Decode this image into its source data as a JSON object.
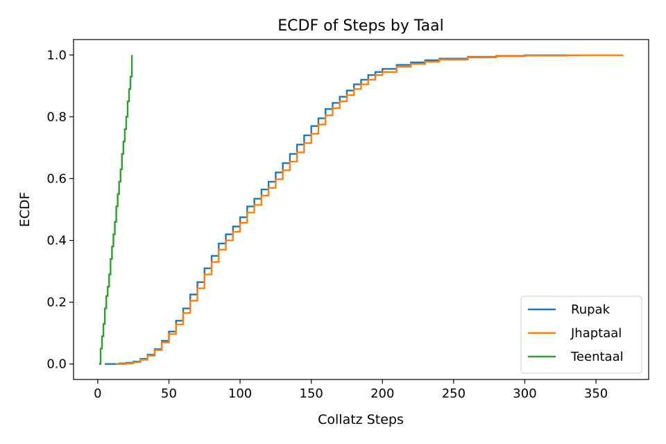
{
  "chart_data": {
    "type": "line",
    "title": "ECDF of Steps by Taal",
    "xlabel": "Collatz Steps",
    "ylabel": "ECDF",
    "xlim": [
      -17,
      387
    ],
    "ylim": [
      -0.05,
      1.05
    ],
    "xticks": [
      0,
      50,
      100,
      150,
      200,
      250,
      300,
      350
    ],
    "yticks": [
      0.0,
      0.2,
      0.4,
      0.6,
      0.8,
      1.0
    ],
    "xtick_labels": [
      "0",
      "50",
      "100",
      "150",
      "200",
      "250",
      "300",
      "350"
    ],
    "ytick_labels": [
      "0.0",
      "0.2",
      "0.4",
      "0.6",
      "0.8",
      "1.0"
    ],
    "grid": false,
    "legend_position": "bottom-right",
    "series": [
      {
        "name": "Rupak",
        "color": "#1f77b4",
        "x": [
          5,
          15,
          20,
          25,
          30,
          35,
          40,
          45,
          50,
          55,
          60,
          65,
          70,
          75,
          80,
          85,
          90,
          95,
          100,
          105,
          110,
          115,
          120,
          125,
          130,
          135,
          140,
          145,
          150,
          155,
          160,
          165,
          170,
          175,
          180,
          185,
          190,
          195,
          200,
          210,
          220,
          230,
          240,
          260,
          280,
          300,
          338
        ],
        "y": [
          0.0,
          0.002,
          0.004,
          0.008,
          0.017,
          0.03,
          0.048,
          0.075,
          0.105,
          0.14,
          0.18,
          0.225,
          0.265,
          0.31,
          0.35,
          0.39,
          0.42,
          0.445,
          0.475,
          0.51,
          0.535,
          0.565,
          0.59,
          0.62,
          0.65,
          0.68,
          0.71,
          0.74,
          0.77,
          0.795,
          0.825,
          0.845,
          0.865,
          0.885,
          0.905,
          0.92,
          0.935,
          0.945,
          0.955,
          0.968,
          0.976,
          0.983,
          0.988,
          0.994,
          0.997,
          0.999,
          1.0
        ]
      },
      {
        "name": "Jhaptaal",
        "color": "#ff7f0e",
        "x": [
          13,
          20,
          25,
          30,
          35,
          40,
          45,
          50,
          55,
          60,
          65,
          70,
          75,
          80,
          85,
          90,
          95,
          100,
          105,
          110,
          115,
          120,
          125,
          130,
          135,
          140,
          145,
          150,
          155,
          160,
          165,
          170,
          175,
          180,
          185,
          190,
          195,
          200,
          210,
          220,
          230,
          240,
          260,
          280,
          300,
          330,
          369
        ],
        "y": [
          0.0,
          0.002,
          0.006,
          0.014,
          0.027,
          0.045,
          0.07,
          0.097,
          0.128,
          0.165,
          0.205,
          0.245,
          0.29,
          0.33,
          0.37,
          0.4,
          0.428,
          0.457,
          0.49,
          0.515,
          0.545,
          0.57,
          0.598,
          0.627,
          0.655,
          0.685,
          0.715,
          0.745,
          0.775,
          0.805,
          0.828,
          0.85,
          0.87,
          0.89,
          0.905,
          0.92,
          0.935,
          0.945,
          0.962,
          0.971,
          0.978,
          0.985,
          0.992,
          0.996,
          0.998,
          0.999,
          1.0
        ]
      },
      {
        "name": "Teentaal",
        "color": "#2ca02c",
        "x": [
          1,
          2,
          3,
          4,
          5,
          6,
          7,
          8,
          9,
          10,
          11,
          12,
          13,
          14,
          15,
          16,
          17,
          18,
          19,
          20,
          21,
          22,
          23,
          24
        ],
        "y": [
          0.0,
          0.05,
          0.09,
          0.13,
          0.18,
          0.22,
          0.25,
          0.29,
          0.34,
          0.38,
          0.42,
          0.46,
          0.51,
          0.55,
          0.59,
          0.63,
          0.68,
          0.72,
          0.76,
          0.8,
          0.85,
          0.89,
          0.93,
          1.0
        ]
      }
    ]
  }
}
